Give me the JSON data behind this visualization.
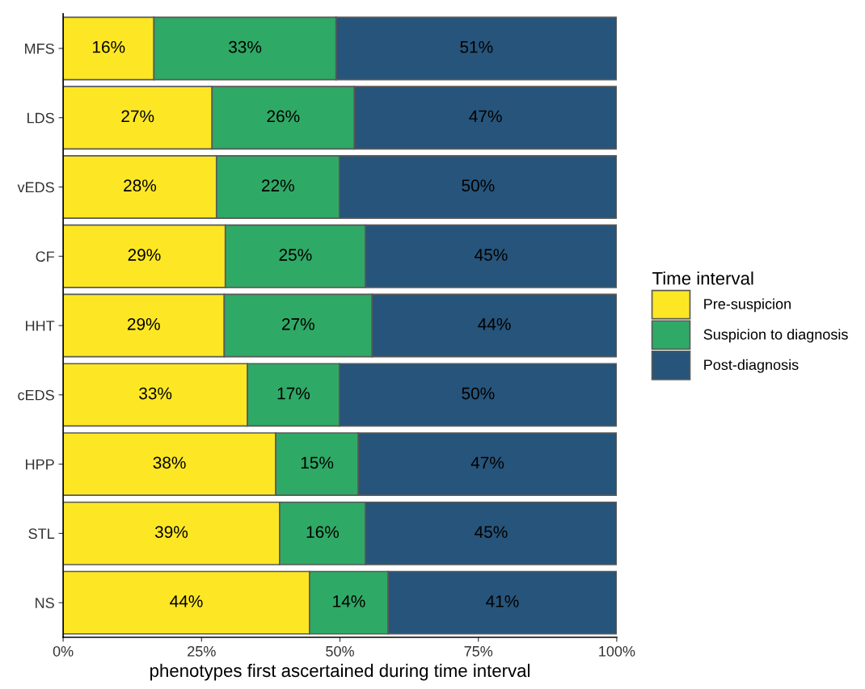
{
  "chart_data": {
    "type": "bar",
    "orientation": "horizontal",
    "stacked": true,
    "xlabel": "phenotypes first ascertained during time interval",
    "legend_title": "Time interval",
    "legend": "right",
    "categories": [
      "MFS",
      "LDS",
      "vEDS",
      "CF",
      "HHT",
      "cEDS",
      "HPP",
      "STL",
      "NS"
    ],
    "xlim": [
      0,
      100
    ],
    "xticks": [
      {
        "value": 0,
        "label": "0%"
      },
      {
        "value": 25,
        "label": "25%"
      },
      {
        "value": 50,
        "label": "50%"
      },
      {
        "value": 75,
        "label": "75%"
      },
      {
        "value": 100,
        "label": "100%"
      }
    ],
    "grid": false,
    "series": [
      {
        "name": "Pre-suspicion",
        "color": "#fde725",
        "values": [
          16.4,
          26.9,
          27.7,
          29.3,
          29.1,
          33.3,
          38.4,
          39.1,
          44.5
        ],
        "value_labels": [
          "16%",
          "27%",
          "28%",
          "29%",
          "29%",
          "33%",
          "38%",
          "39%",
          "44%"
        ]
      },
      {
        "name": "Suspicion to diagnosis",
        "color": "#2fa966",
        "values": [
          32.9,
          25.7,
          22.2,
          25.3,
          26.7,
          16.6,
          14.9,
          15.5,
          14.2
        ],
        "value_labels": [
          "33%",
          "26%",
          "22%",
          "25%",
          "27%",
          "17%",
          "15%",
          "16%",
          "14%"
        ]
      },
      {
        "name": "Post-diagnosis",
        "color": "#27547a",
        "values": [
          50.7,
          47.4,
          50.1,
          45.4,
          44.2,
          50.1,
          46.7,
          45.4,
          41.3
        ],
        "value_labels": [
          "51%",
          "47%",
          "50%",
          "45%",
          "44%",
          "50%",
          "47%",
          "45%",
          "41%"
        ]
      }
    ]
  }
}
